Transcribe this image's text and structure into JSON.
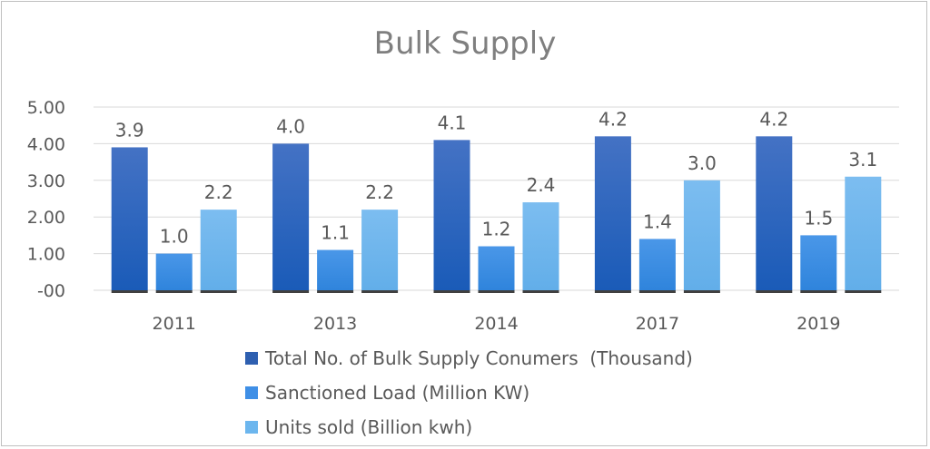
{
  "chart_data": {
    "type": "bar",
    "title": "Bulk Supply",
    "categories": [
      "2011",
      "2013",
      "2014",
      "2017",
      "2019"
    ],
    "yticks": [
      "-00",
      "1.00",
      "2.00",
      "3.00",
      "4.00",
      "5.00"
    ],
    "ylim": [
      0,
      5
    ],
    "grid": true,
    "legend_position": "bottom",
    "series": [
      {
        "name": "Total No. of Bulk Supply Conumers  (Thousand)",
        "values": [
          3.9,
          4.0,
          4.1,
          4.2,
          4.2
        ],
        "labels": [
          "3.9",
          "4.0",
          "4.1",
          "4.2",
          "4.2"
        ],
        "color": "#2e5fb0"
      },
      {
        "name": "Sanctioned Load (Million KW)",
        "values": [
          1.0,
          1.1,
          1.2,
          1.4,
          1.5
        ],
        "labels": [
          "1.0",
          "1.1",
          "1.2",
          "1.4",
          "1.5"
        ],
        "color": "#3f8fe6"
      },
      {
        "name": "Units sold (Billion kwh)",
        "values": [
          2.2,
          2.2,
          2.4,
          3.0,
          3.1
        ],
        "labels": [
          "2.2",
          "2.2",
          "2.4",
          "3.0",
          "3.1"
        ],
        "color": "#6cb6ee"
      }
    ]
  }
}
